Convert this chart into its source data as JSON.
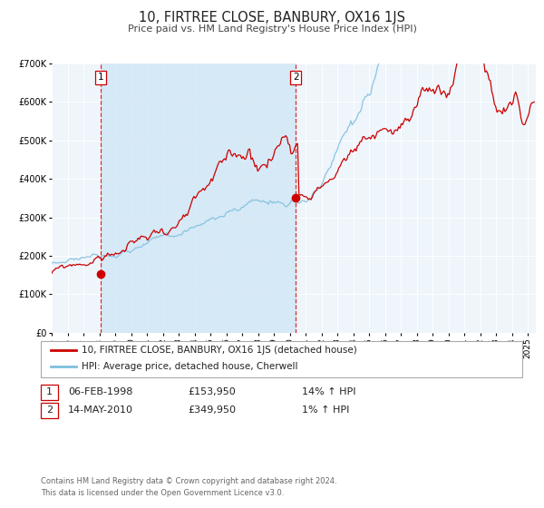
{
  "title": "10, FIRTREE CLOSE, BANBURY, OX16 1JS",
  "subtitle": "Price paid vs. HM Land Registry's House Price Index (HPI)",
  "ylim": [
    0,
    700000
  ],
  "yticks": [
    0,
    100000,
    200000,
    300000,
    400000,
    500000,
    600000,
    700000
  ],
  "ytick_labels": [
    "£0",
    "£100K",
    "£200K",
    "£300K",
    "£400K",
    "£500K",
    "£600K",
    "£700K"
  ],
  "hpi_color": "#7fbfdf",
  "price_color": "#cc0000",
  "bg_color": "#ffffff",
  "plot_bg_color": "#eef5fb",
  "grid_color": "#ffffff",
  "sale1_date": 1998.09,
  "sale1_price": 153950,
  "sale2_date": 2010.37,
  "sale2_price": 349950,
  "legend_label1": "10, FIRTREE CLOSE, BANBURY, OX16 1JS (detached house)",
  "legend_label2": "HPI: Average price, detached house, Cherwell",
  "annotation1_label": "1",
  "annotation1_date_str": "06-FEB-1998",
  "annotation1_price_str": "£153,950",
  "annotation1_hpi_str": "14% ↑ HPI",
  "annotation2_label": "2",
  "annotation2_date_str": "14-MAY-2010",
  "annotation2_price_str": "£349,950",
  "annotation2_hpi_str": "1% ↑ HPI",
  "footer": "Contains HM Land Registry data © Crown copyright and database right 2024.\nThis data is licensed under the Open Government Licence v3.0.",
  "xmin": 1995.0,
  "xmax": 2025.5,
  "xticks": [
    1995,
    1996,
    1997,
    1998,
    1999,
    2000,
    2001,
    2002,
    2003,
    2004,
    2005,
    2006,
    2007,
    2008,
    2009,
    2010,
    2011,
    2012,
    2013,
    2014,
    2015,
    2016,
    2017,
    2018,
    2019,
    2020,
    2021,
    2022,
    2023,
    2024,
    2025
  ]
}
